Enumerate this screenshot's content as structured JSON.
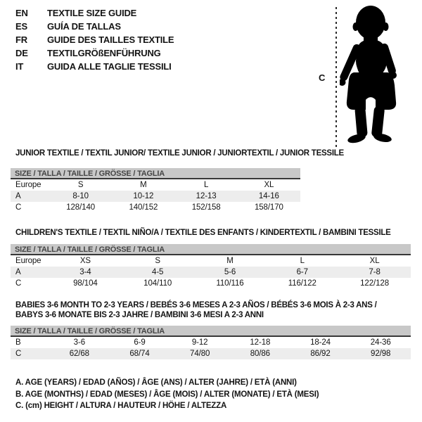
{
  "colors": {
    "bar_bg": "#c8c8c8",
    "bar_text": "#454545",
    "stripe": "#ededed",
    "rule": "#383838",
    "text": "#141414",
    "silhouette": "#000000"
  },
  "language_guide": {
    "items": [
      {
        "code": "EN",
        "label": "TEXTILE SIZE GUIDE"
      },
      {
        "code": "ES",
        "label": "GUÍA DE TALLAS"
      },
      {
        "code": "FR",
        "label": "GUIDE DES TAILLES TEXTILE"
      },
      {
        "code": "DE",
        "label": "TEXTILGRÖßENFÜHRUNG"
      },
      {
        "code": "IT",
        "label": "GUIDA ALLE TAGLIE TESSILI"
      }
    ]
  },
  "figure": {
    "height_label": "C"
  },
  "sections": [
    {
      "title_lines": [
        "JUNIOR TEXTILE / TEXTIL JUNIOR/ TEXTILE JUNIOR / JUNIORTEXTIL / JUNIOR TESSILE"
      ],
      "size_header": "SIZE / TALLA / TAILLE / GRÖSSE / TAGLIA",
      "rows": [
        {
          "label": "Europe",
          "values": [
            "S",
            "M",
            "L",
            "XL"
          ],
          "striped": false
        },
        {
          "label": "A",
          "values": [
            "8-10",
            "10-12",
            "12-13",
            "14-16"
          ],
          "striped": true
        },
        {
          "label": "C",
          "values": [
            "128/140",
            "140/152",
            "152/158",
            "158/170"
          ],
          "striped": false
        }
      ]
    },
    {
      "title_lines": [
        "CHILDREN'S TEXTILE / TEXTIL NIÑO/A / TEXTILE DES ENFANTS / KINDERTEXTIL / BAMBINI TESSILE"
      ],
      "size_header": "SIZE / TALLA / TAILLE / GRÖSSE / TAGLIA",
      "rows": [
        {
          "label": "Europe",
          "values": [
            "XS",
            "S",
            "M",
            "L",
            "XL"
          ],
          "striped": false
        },
        {
          "label": "A",
          "values": [
            "3-4",
            "4-5",
            "5-6",
            "6-7",
            "7-8"
          ],
          "striped": true
        },
        {
          "label": "C",
          "values": [
            "98/104",
            "104/110",
            "110/116",
            "116/122",
            "122/128"
          ],
          "striped": false
        }
      ]
    },
    {
      "title_lines": [
        "BABIES 3-6 MONTH TO 2-3 YEARS / BEBÉS 3-6 MESES A 2-3 AÑOS / BÉBÉS 3-6 MOIS À 2-3 ANS /",
        "BABYS 3-6 MONATE BIS 2-3 JAHRE / BAMBINI 3-6 MESI A 2-3 ANNI"
      ],
      "size_header": "SIZE / TALLA / TAILLE / GRÖSSE / TAGLIA",
      "rows": [
        {
          "label": "B",
          "values": [
            "3-6",
            "6-9",
            "9-12",
            "12-18",
            "18-24",
            "24-36"
          ],
          "striped": false
        },
        {
          "label": "C",
          "values": [
            "62/68",
            "68/74",
            "74/80",
            "80/86",
            "86/92",
            "92/98"
          ],
          "striped": true
        }
      ]
    }
  ],
  "legend": {
    "lines": [
      "A. AGE (YEARS) / EDAD (AÑOS) / ÂGE (ANS) / ALTER (JAHRE) / ETÀ (ANNI)",
      "B. AGE (MONTHS) / EDAD (MESES) / ÂGE (MOIS) / ALTER (MONATE) / ETÀ (MESI)",
      "C. (cm) HEIGHT / ALTURA / HAUTEUR / HÖHE / ALTEZZA"
    ]
  }
}
